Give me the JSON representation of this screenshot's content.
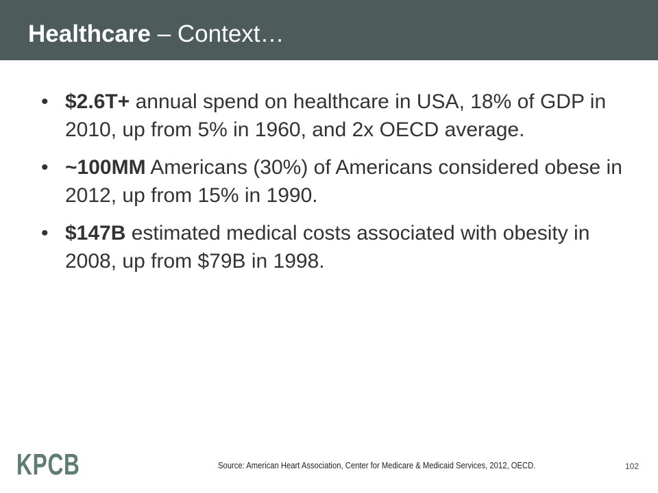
{
  "header": {
    "title_bold": "Healthcare",
    "title_rest": " – Context…"
  },
  "bullets": [
    {
      "bold": "$2.6T+",
      "text": " annual spend on healthcare in USA, 18% of GDP in 2010, up from 5% in 1960, and 2x OECD average."
    },
    {
      "bold": "~100MM",
      "text": " Americans (30%) of Americans considered obese in 2012, up from 15% in 1990."
    },
    {
      "bold": "$147B",
      "text": " estimated medical costs associated with obesity in 2008, up from $79B in 1998."
    }
  ],
  "bullet_glyph": "•",
  "footer": {
    "logo": "KPCB",
    "source": "Source: American Heart Association, Center for Medicare & Medicaid Services, 2012, OECD.",
    "page_number": "102"
  },
  "colors": {
    "header_bg": "#4e5b5b",
    "logo": "#5f7b73"
  }
}
